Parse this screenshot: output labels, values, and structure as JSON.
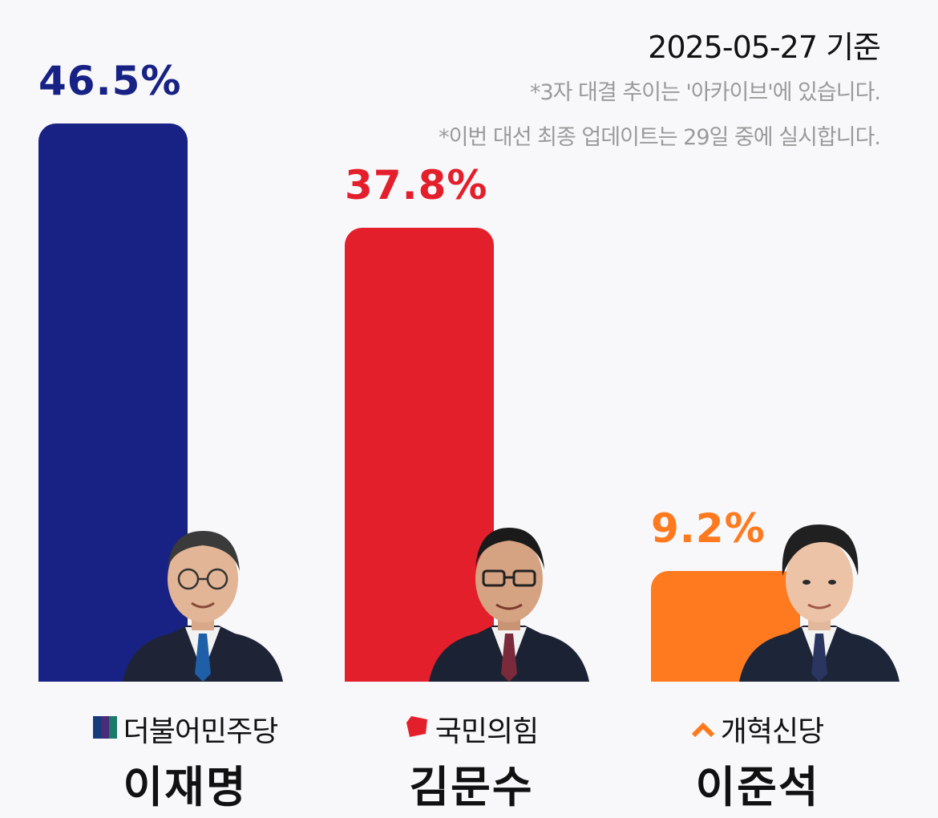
{
  "header": {
    "date": "2025-05-27 기준",
    "notes": [
      "*3자 대결 추이는 '아카이브'에 있습니다.",
      "*이번 대선 최종 업데이트는 29일 중에 실시합니다."
    ]
  },
  "chart_data": {
    "type": "bar",
    "categories": [
      "이재명",
      "김문수",
      "이준석"
    ],
    "values": [
      46.5,
      37.8,
      9.2
    ],
    "value_labels": [
      "46.5%",
      "37.8%",
      "9.2%"
    ],
    "ylim": [
      0,
      46.5
    ],
    "grid": false,
    "legend": "none",
    "title": "",
    "xlabel": "",
    "ylabel": ""
  },
  "candidates": [
    {
      "party": "더불어민주당",
      "name": "이재명",
      "color": "#172284",
      "party_icon": "minjoo-stripes-icon",
      "portrait": "portrait-lee-jae-myung"
    },
    {
      "party": "국민의힘",
      "name": "김문수",
      "color": "#e41f2c",
      "party_icon": "ppp-red-shape-icon",
      "portrait": "portrait-kim-moon-soo"
    },
    {
      "party": "개혁신당",
      "name": "이준석",
      "color": "#ff7a1e",
      "party_icon": "reform-chevron-icon",
      "portrait": "portrait-lee-jun-seok"
    }
  ]
}
